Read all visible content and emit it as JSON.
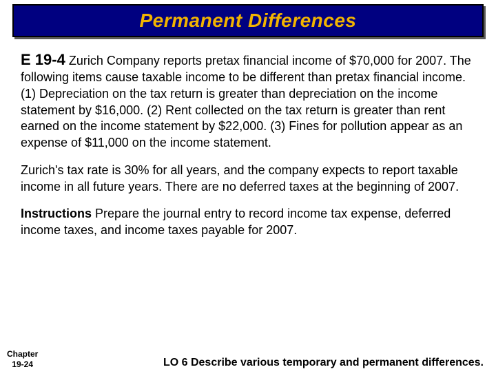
{
  "title": "Permanent Differences",
  "exercise_id": "E 19-4",
  "para1_rest": " Zurich Company reports pretax financial income of $70,000 for 2007. The following items cause taxable income to be different than pretax financial income.  (1) Depreciation on the tax return is greater than depreciation on the income statement by $16,000. (2) Rent collected on the tax return is greater than rent earned on the income statement by $22,000. (3) Fines for pollution appear as an expense of $11,000 on the income statement.",
  "para2": "Zurich's tax rate is 30% for all years, and the company expects to report taxable income in all future years. There are no deferred taxes at the beginning of 2007.",
  "instructions_label": "Instructions",
  "para3_rest": "  Prepare the journal entry to record income tax expense, deferred income taxes, and income taxes payable for 2007.",
  "chapter_line1": "Chapter",
  "chapter_line2": "19-24",
  "lo_text": "LO 6 Describe various temporary and permanent differences.",
  "colors": {
    "title_bg": "#000080",
    "title_fg": "#f2b400",
    "body_bg": "#ffffff",
    "text": "#000000"
  },
  "fonts": {
    "title_family": "Comic Sans MS",
    "body_family": "Trebuchet MS",
    "title_size_pt": 21,
    "body_size_pt": 14,
    "footer_lo_size_pt": 12,
    "chapter_size_pt": 9
  }
}
